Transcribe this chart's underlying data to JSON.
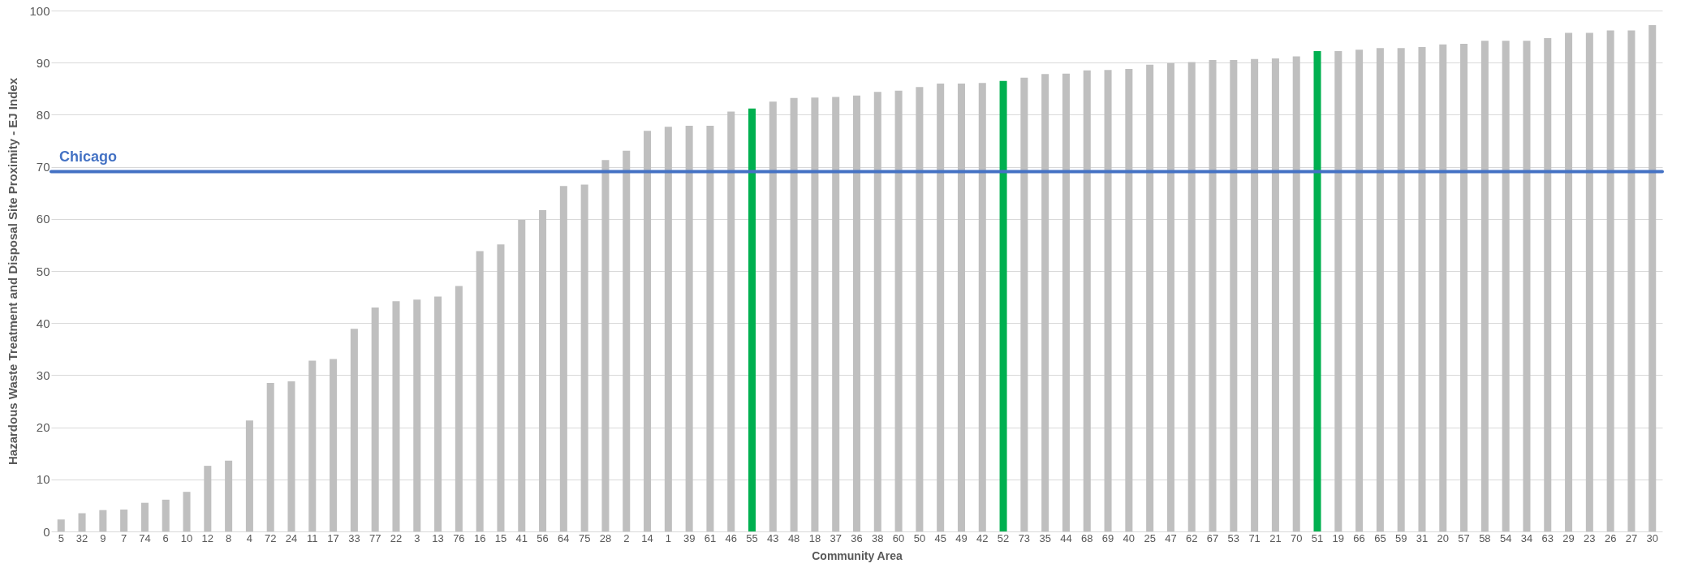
{
  "chart_data": {
    "type": "bar",
    "xlabel": "Community Area",
    "ylabel": "Hazardous Waste Treatment and Disposal Site Proximity - EJ Index",
    "categories": [
      "5",
      "32",
      "9",
      "7",
      "74",
      "6",
      "10",
      "12",
      "8",
      "4",
      "72",
      "24",
      "11",
      "17",
      "33",
      "77",
      "22",
      "3",
      "13",
      "76",
      "16",
      "15",
      "41",
      "56",
      "64",
      "75",
      "28",
      "2",
      "14",
      "1",
      "39",
      "61",
      "46",
      "55",
      "43",
      "48",
      "18",
      "37",
      "36",
      "38",
      "60",
      "50",
      "45",
      "49",
      "42",
      "52",
      "73",
      "35",
      "44",
      "68",
      "69",
      "40",
      "25",
      "47",
      "62",
      "67",
      "53",
      "71",
      "21",
      "70",
      "51",
      "19",
      "66",
      "65",
      "59",
      "31",
      "20",
      "57",
      "58",
      "54",
      "34",
      "63",
      "29",
      "23",
      "26",
      "27",
      "30"
    ],
    "values": [
      2.3,
      3.5,
      4.1,
      4.2,
      5.5,
      6.1,
      7.6,
      12.6,
      13.6,
      21.3,
      28.5,
      28.8,
      32.8,
      33.1,
      38.9,
      43,
      44.2,
      44.5,
      45.1,
      47.1,
      53.8,
      55.1,
      59.8,
      61.7,
      66.3,
      66.6,
      71.3,
      73.1,
      76.9,
      77.7,
      77.9,
      77.9,
      80.6,
      81.2,
      82.5,
      83.2,
      83.3,
      83.4,
      83.7,
      84.4,
      84.6,
      85.3,
      86,
      86,
      86.1,
      86.5,
      87.1,
      87.8,
      87.9,
      88.5,
      88.6,
      88.8,
      89.6,
      89.9,
      90.1,
      90.5,
      90.5,
      90.7,
      90.8,
      91.2,
      92.2,
      92.2,
      92.5,
      92.8,
      92.8,
      93,
      93.5,
      93.6,
      94.2,
      94.2,
      94.2,
      94.7,
      95.7,
      95.7,
      96.2,
      96.2,
      97.2
    ],
    "colors": [
      "#bfbfbf",
      "#bfbfbf",
      "#bfbfbf",
      "#bfbfbf",
      "#bfbfbf",
      "#bfbfbf",
      "#bfbfbf",
      "#bfbfbf",
      "#bfbfbf",
      "#bfbfbf",
      "#bfbfbf",
      "#bfbfbf",
      "#bfbfbf",
      "#bfbfbf",
      "#bfbfbf",
      "#bfbfbf",
      "#bfbfbf",
      "#bfbfbf",
      "#bfbfbf",
      "#bfbfbf",
      "#bfbfbf",
      "#bfbfbf",
      "#bfbfbf",
      "#bfbfbf",
      "#bfbfbf",
      "#bfbfbf",
      "#bfbfbf",
      "#bfbfbf",
      "#bfbfbf",
      "#bfbfbf",
      "#bfbfbf",
      "#bfbfbf",
      "#bfbfbf",
      "#00b050",
      "#bfbfbf",
      "#bfbfbf",
      "#bfbfbf",
      "#bfbfbf",
      "#bfbfbf",
      "#bfbfbf",
      "#bfbfbf",
      "#bfbfbf",
      "#bfbfbf",
      "#bfbfbf",
      "#bfbfbf",
      "#00b050",
      "#bfbfbf",
      "#bfbfbf",
      "#bfbfbf",
      "#bfbfbf",
      "#bfbfbf",
      "#bfbfbf",
      "#bfbfbf",
      "#bfbfbf",
      "#bfbfbf",
      "#bfbfbf",
      "#bfbfbf",
      "#bfbfbf",
      "#bfbfbf",
      "#bfbfbf",
      "#00b050",
      "#bfbfbf",
      "#bfbfbf",
      "#bfbfbf",
      "#bfbfbf",
      "#bfbfbf",
      "#bfbfbf",
      "#bfbfbf",
      "#bfbfbf",
      "#bfbfbf",
      "#bfbfbf",
      "#bfbfbf",
      "#bfbfbf",
      "#bfbfbf",
      "#bfbfbf",
      "#bfbfbf",
      "#bfbfbf"
    ],
    "ylim": [
      0,
      100
    ],
    "yticks": [
      0,
      10,
      20,
      30,
      40,
      50,
      60,
      70,
      80,
      90,
      100
    ],
    "grid": "y",
    "ref_lines": [
      {
        "axis": "y",
        "value": 69.1,
        "label": "Chicago",
        "color": "#4472c4"
      }
    ]
  }
}
